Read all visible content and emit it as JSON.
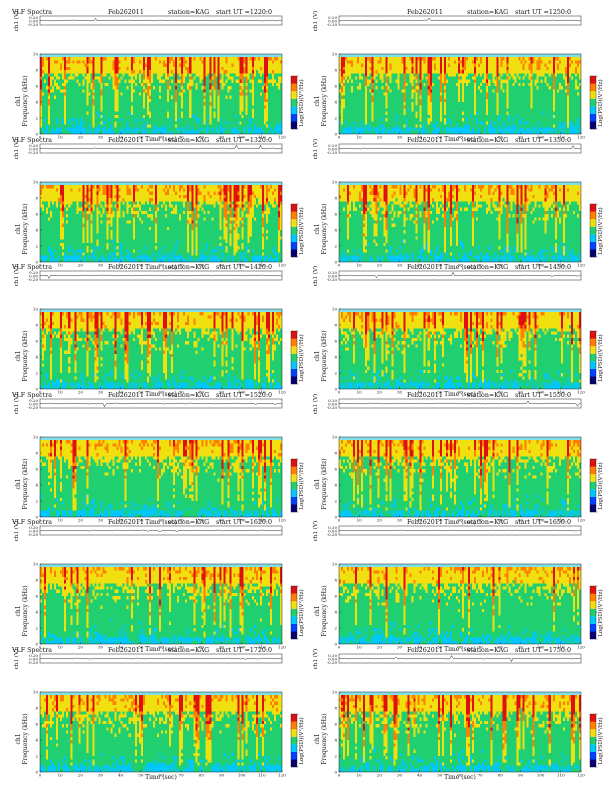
{
  "chart_data": [
    {
      "type": "heatmap",
      "title": "VLF Spectra",
      "date": "Feb262011",
      "station": "station=KAG",
      "start": "start  UT  =1220:0",
      "top_ylabel": "ch1 (V)",
      "top_yticks": [
        "0.20",
        "0.00",
        "-0.20"
      ],
      "ylabel_ch": "ch1",
      "ylabel": "Frequency  (kHz)",
      "yticks": [
        "0",
        "2",
        "4",
        "6",
        "8",
        "10"
      ],
      "xlabel": "Time  (sec)",
      "xticks": [
        "0",
        "10",
        "20",
        "30",
        "40",
        "50",
        "60",
        "70",
        "80",
        "90",
        "100",
        "110",
        "120"
      ],
      "xlim": [
        0,
        120
      ],
      "ylim": [
        0,
        10
      ],
      "colorbar_label": "Log(PSD)(V²/Hz)",
      "colorbar_ticks": [
        "",
        "",
        ""
      ],
      "color_scale": [
        "#08006e",
        "#0040ff",
        "#00c8ff",
        "#20d070",
        "#f0e010",
        "#ff8000",
        "#e01010"
      ]
    },
    {
      "type": "heatmap",
      "title": "",
      "date": "Feb262011",
      "station": "station=KAG",
      "start": "start  UT  =1250:0",
      "top_ylabel": "ch1 (V)",
      "top_yticks": [
        "0.20",
        "0.00",
        "-0.20"
      ],
      "ylabel_ch": "ch1",
      "ylabel": "Frequency  (kHz)",
      "yticks": [
        "0",
        "2",
        "4",
        "6",
        "8",
        "10"
      ],
      "xlabel": "Time  (sec)",
      "xticks": [
        "0",
        "10",
        "20",
        "30",
        "40",
        "50",
        "60",
        "70",
        "80",
        "90",
        "100",
        "110",
        "120"
      ],
      "xlim": [
        0,
        120
      ],
      "ylim": [
        0,
        10
      ],
      "colorbar_label": "Log(PSD)(V²/Hz)",
      "colorbar_ticks": [
        "",
        "",
        ""
      ],
      "color_scale": [
        "#08006e",
        "#0040ff",
        "#00c8ff",
        "#20d070",
        "#f0e010",
        "#ff8000",
        "#e01010"
      ]
    },
    {
      "type": "heatmap",
      "title": "VLF Spectra",
      "date": "Feb262011",
      "station": "station=KAG",
      "start": "start  UT  =1320:0",
      "top_ylabel": "ch1 (V)",
      "top_yticks": [
        "0.20",
        "0.00",
        "-0.20"
      ],
      "ylabel_ch": "ch1",
      "ylabel": "Frequency  (kHz)",
      "yticks": [
        "0",
        "2",
        "4",
        "6",
        "8",
        "10"
      ],
      "xlabel": "Time  (sec)",
      "xticks": [
        "0",
        "10",
        "20",
        "30",
        "40",
        "50",
        "60",
        "70",
        "80",
        "90",
        "100",
        "110",
        "120"
      ],
      "xlim": [
        0,
        120
      ],
      "ylim": [
        0,
        10
      ],
      "colorbar_label": "Log(PSD)(V²/Hz)",
      "colorbar_ticks": [
        "",
        "",
        ""
      ],
      "color_scale": [
        "#08006e",
        "#0040ff",
        "#00c8ff",
        "#20d070",
        "#f0e010",
        "#ff8000",
        "#e01010"
      ]
    },
    {
      "type": "heatmap",
      "title": "",
      "date": "Feb262011",
      "station": "station=KAG",
      "start": "start  UT  =1350:0",
      "top_ylabel": "ch1 (V)",
      "top_yticks": [
        "0.20",
        "0.00",
        "-0.20"
      ],
      "ylabel_ch": "ch1",
      "ylabel": "Frequency  (kHz)",
      "yticks": [
        "0",
        "2",
        "4",
        "6",
        "8",
        "10"
      ],
      "xlabel": "Time  (sec)",
      "xticks": [
        "0",
        "10",
        "20",
        "30",
        "40",
        "50",
        "60",
        "70",
        "80",
        "90",
        "100",
        "110",
        "120"
      ],
      "xlim": [
        0,
        120
      ],
      "ylim": [
        0,
        10
      ],
      "colorbar_label": "Log(PSD)(V²/Hz)",
      "colorbar_ticks": [
        "",
        "",
        ""
      ],
      "color_scale": [
        "#08006e",
        "#0040ff",
        "#00c8ff",
        "#20d070",
        "#f0e010",
        "#ff8000",
        "#e01010"
      ]
    },
    {
      "type": "heatmap",
      "title": "VLF Spectra",
      "date": "Feb262011",
      "station": "station=KAG",
      "start": "start  UT  =1420:0",
      "top_ylabel": "ch1 (V)",
      "top_yticks": [
        "0.20",
        "0.00",
        "-0.20"
      ],
      "ylabel_ch": "ch1",
      "ylabel": "Frequency  (kHz)",
      "yticks": [
        "0",
        "2",
        "4",
        "6",
        "8",
        "10"
      ],
      "xlabel": "Time  (sec)",
      "xticks": [
        "0",
        "10",
        "20",
        "30",
        "40",
        "50",
        "60",
        "70",
        "80",
        "90",
        "100",
        "110",
        "120"
      ],
      "xlim": [
        0,
        120
      ],
      "ylim": [
        0,
        10
      ],
      "colorbar_label": "Log(PSD)(V²/Hz)",
      "colorbar_ticks": [
        "",
        "",
        ""
      ],
      "color_scale": [
        "#08006e",
        "#0040ff",
        "#00c8ff",
        "#20d070",
        "#f0e010",
        "#ff8000",
        "#e01010"
      ]
    },
    {
      "type": "heatmap",
      "title": "",
      "date": "Feb262011",
      "station": "station=KAG",
      "start": "start  UT  =1450:0",
      "top_ylabel": "ch1 (V)",
      "top_yticks": [
        "0.20",
        "0.00",
        "-0.20"
      ],
      "ylabel_ch": "ch1",
      "ylabel": "Frequency  (kHz)",
      "yticks": [
        "0",
        "2",
        "4",
        "6",
        "8",
        "10"
      ],
      "xlabel": "Time  (sec)",
      "xticks": [
        "0",
        "10",
        "20",
        "30",
        "40",
        "50",
        "60",
        "70",
        "80",
        "90",
        "100",
        "110",
        "120"
      ],
      "xlim": [
        0,
        120
      ],
      "ylim": [
        0,
        10
      ],
      "colorbar_label": "Log(PSD)(V²/Hz)",
      "colorbar_ticks": [
        "",
        "",
        ""
      ],
      "color_scale": [
        "#08006e",
        "#0040ff",
        "#00c8ff",
        "#20d070",
        "#f0e010",
        "#ff8000",
        "#e01010"
      ]
    },
    {
      "type": "heatmap",
      "title": "VLF Spectra",
      "date": "Feb262011",
      "station": "station=KAG",
      "start": "start  UT  =1520:0",
      "top_ylabel": "ch1 (V)",
      "top_yticks": [
        "0.20",
        "0.00",
        "-0.20"
      ],
      "ylabel_ch": "ch1",
      "ylabel": "Frequency  (kHz)",
      "yticks": [
        "0",
        "2",
        "4",
        "6",
        "8",
        "10"
      ],
      "xlabel": "Time  (sec)",
      "xticks": [
        "0",
        "10",
        "20",
        "30",
        "40",
        "50",
        "60",
        "70",
        "80",
        "90",
        "100",
        "110",
        "120"
      ],
      "xlim": [
        0,
        120
      ],
      "ylim": [
        0,
        10
      ],
      "colorbar_label": "Log(PSD)(V²/Hz)",
      "colorbar_ticks": [
        "",
        "",
        ""
      ],
      "color_scale": [
        "#08006e",
        "#0040ff",
        "#00c8ff",
        "#20d070",
        "#f0e010",
        "#ff8000",
        "#e01010"
      ]
    },
    {
      "type": "heatmap",
      "title": "",
      "date": "Feb262011",
      "station": "station=KAG",
      "start": "start  UT  =1550:0",
      "top_ylabel": "ch1 (V)",
      "top_yticks": [
        "0.20",
        "0.00",
        "-0.20"
      ],
      "ylabel_ch": "ch1",
      "ylabel": "Frequency  (kHz)",
      "yticks": [
        "0",
        "2",
        "4",
        "6",
        "8",
        "10"
      ],
      "xlabel": "Time  (sec)",
      "xticks": [
        "0",
        "10",
        "20",
        "30",
        "40",
        "50",
        "60",
        "70",
        "80",
        "90",
        "100",
        "110",
        "120"
      ],
      "xlim": [
        0,
        120
      ],
      "ylim": [
        0,
        10
      ],
      "colorbar_label": "Log(PSD)(V²/Hz)",
      "colorbar_ticks": [
        "",
        "",
        ""
      ],
      "color_scale": [
        "#08006e",
        "#0040ff",
        "#00c8ff",
        "#20d070",
        "#f0e010",
        "#ff8000",
        "#e01010"
      ]
    },
    {
      "type": "heatmap",
      "title": "VLF Spectra",
      "date": "Feb262011",
      "station": "station=KAG",
      "start": "start  UT  =1620:0",
      "top_ylabel": "ch1 (V)",
      "top_yticks": [
        "0.20",
        "0.00",
        "-0.20"
      ],
      "ylabel_ch": "ch1",
      "ylabel": "Frequency  (kHz)",
      "yticks": [
        "0",
        "2",
        "4",
        "6",
        "8",
        "10"
      ],
      "xlabel": "Time  (sec)",
      "xticks": [
        "0",
        "10",
        "20",
        "30",
        "40",
        "50",
        "60",
        "70",
        "80",
        "90",
        "100",
        "110",
        "120"
      ],
      "xlim": [
        0,
        120
      ],
      "ylim": [
        0,
        10
      ],
      "colorbar_label": "Log(PSD)(V²/Hz)",
      "colorbar_ticks": [
        "",
        "",
        ""
      ],
      "color_scale": [
        "#08006e",
        "#0040ff",
        "#00c8ff",
        "#20d070",
        "#f0e010",
        "#ff8000",
        "#e01010"
      ]
    },
    {
      "type": "heatmap",
      "title": "",
      "date": "Feb262011",
      "station": "station=KAG",
      "start": "start  UT  =1650:0",
      "top_ylabel": "ch1 (V)",
      "top_yticks": [
        "0.20",
        "0.00",
        "-0.20"
      ],
      "ylabel_ch": "ch1",
      "ylabel": "Frequency  (kHz)",
      "yticks": [
        "0",
        "2",
        "4",
        "6",
        "8",
        "10"
      ],
      "xlabel": "Time  (sec)",
      "xticks": [
        "0",
        "10",
        "20",
        "30",
        "40",
        "50",
        "60",
        "70",
        "80",
        "90",
        "100",
        "110",
        "120"
      ],
      "xlim": [
        0,
        120
      ],
      "ylim": [
        0,
        10
      ],
      "colorbar_label": "Log(PSD)(V²/Hz)",
      "colorbar_ticks": [
        "",
        "",
        ""
      ],
      "color_scale": [
        "#08006e",
        "#0040ff",
        "#00c8ff",
        "#20d070",
        "#f0e010",
        "#ff8000",
        "#e01010"
      ]
    },
    {
      "type": "heatmap",
      "title": "VLF Spectra",
      "date": "Feb262011",
      "station": "station=KAG",
      "start": "start  UT  =1720:0",
      "top_ylabel": "ch1 (V)",
      "top_yticks": [
        "0.20",
        "0.00",
        "-0.20"
      ],
      "ylabel_ch": "ch1",
      "ylabel": "Frequency  (kHz)",
      "yticks": [
        "0",
        "2",
        "4",
        "6",
        "8",
        "10"
      ],
      "xlabel": "Time  (sec)",
      "xticks": [
        "0",
        "10",
        "20",
        "30",
        "40",
        "50",
        "60",
        "70",
        "80",
        "90",
        "100",
        "110",
        "120"
      ],
      "xlim": [
        0,
        120
      ],
      "ylim": [
        0,
        10
      ],
      "colorbar_label": "Log(PSD)(V²/Hz)",
      "colorbar_ticks": [
        "",
        "",
        ""
      ],
      "color_scale": [
        "#08006e",
        "#0040ff",
        "#00c8ff",
        "#20d070",
        "#f0e010",
        "#ff8000",
        "#e01010"
      ]
    },
    {
      "type": "heatmap",
      "title": "",
      "date": "Feb262011",
      "station": "station=KAG",
      "start": "start  UT  =1750:0",
      "top_ylabel": "ch1 (V)",
      "top_yticks": [
        "0.20",
        "0.00",
        "-0.20"
      ],
      "ylabel_ch": "ch1",
      "ylabel": "Frequency  (kHz)",
      "yticks": [
        "0",
        "2",
        "4",
        "6",
        "8",
        "10"
      ],
      "xlabel": "Time  (sec)",
      "xticks": [
        "0",
        "10",
        "20",
        "30",
        "40",
        "50",
        "60",
        "70",
        "80",
        "90",
        "100",
        "110",
        "120"
      ],
      "xlim": [
        0,
        120
      ],
      "ylim": [
        0,
        10
      ],
      "colorbar_label": "Log(PSD)(V²/Hz)",
      "colorbar_ticks": [
        "",
        "",
        ""
      ],
      "color_scale": [
        "#08006e",
        "#0040ff",
        "#00c8ff",
        "#20d070",
        "#f0e010",
        "#ff8000",
        "#e01010"
      ]
    }
  ]
}
